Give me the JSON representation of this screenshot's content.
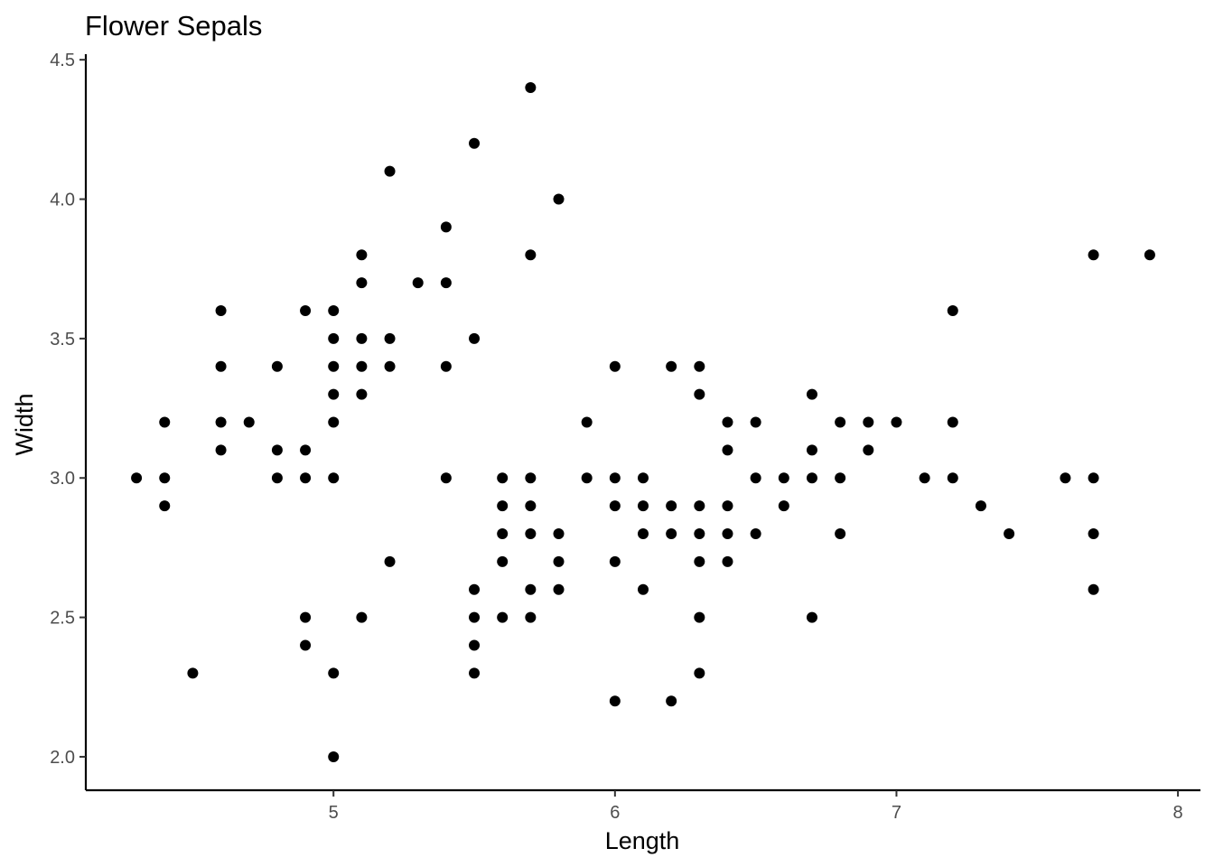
{
  "chart_data": {
    "type": "scatter",
    "title": "Flower Sepals",
    "xlabel": "Length",
    "ylabel": "Width",
    "xlim": [
      4.12,
      8.08
    ],
    "ylim": [
      1.88,
      4.52
    ],
    "xticks": [
      5,
      6,
      7,
      8
    ],
    "yticks": [
      2.0,
      2.5,
      3.0,
      3.5,
      4.0,
      4.5
    ],
    "xtick_labels": [
      "5",
      "6",
      "7",
      "8"
    ],
    "ytick_labels": [
      "2.0",
      "2.5",
      "3.0",
      "3.5",
      "4.0",
      "4.5"
    ],
    "grid": false,
    "legend": false,
    "point_color": "#000000",
    "points": [
      [
        4.3,
        3.0
      ],
      [
        4.4,
        3.2
      ],
      [
        4.4,
        3.0
      ],
      [
        4.4,
        2.9
      ],
      [
        4.5,
        2.3
      ],
      [
        4.6,
        3.6
      ],
      [
        4.6,
        3.4
      ],
      [
        4.6,
        3.2
      ],
      [
        4.6,
        3.1
      ],
      [
        4.7,
        3.2
      ],
      [
        4.8,
        3.4
      ],
      [
        4.8,
        3.1
      ],
      [
        4.8,
        3.0
      ],
      [
        4.9,
        3.6
      ],
      [
        4.9,
        3.1
      ],
      [
        4.9,
        3.0
      ],
      [
        4.9,
        2.5
      ],
      [
        4.9,
        2.4
      ],
      [
        5.0,
        3.6
      ],
      [
        5.0,
        3.5
      ],
      [
        5.0,
        3.4
      ],
      [
        5.0,
        3.3
      ],
      [
        5.0,
        3.2
      ],
      [
        5.0,
        3.0
      ],
      [
        5.0,
        2.3
      ],
      [
        5.0,
        2.0
      ],
      [
        5.1,
        3.8
      ],
      [
        5.1,
        3.7
      ],
      [
        5.1,
        3.5
      ],
      [
        5.1,
        3.4
      ],
      [
        5.1,
        3.3
      ],
      [
        5.1,
        2.5
      ],
      [
        5.2,
        4.1
      ],
      [
        5.2,
        3.5
      ],
      [
        5.2,
        3.4
      ],
      [
        5.2,
        2.7
      ],
      [
        5.3,
        3.7
      ],
      [
        5.4,
        3.9
      ],
      [
        5.4,
        3.7
      ],
      [
        5.4,
        3.4
      ],
      [
        5.4,
        3.0
      ],
      [
        5.5,
        4.2
      ],
      [
        5.5,
        3.5
      ],
      [
        5.5,
        2.6
      ],
      [
        5.5,
        2.5
      ],
      [
        5.5,
        2.4
      ],
      [
        5.5,
        2.3
      ],
      [
        5.6,
        3.0
      ],
      [
        5.6,
        2.9
      ],
      [
        5.6,
        2.8
      ],
      [
        5.6,
        2.7
      ],
      [
        5.6,
        2.5
      ],
      [
        5.7,
        4.4
      ],
      [
        5.7,
        3.8
      ],
      [
        5.7,
        3.0
      ],
      [
        5.7,
        2.9
      ],
      [
        5.7,
        2.8
      ],
      [
        5.7,
        2.6
      ],
      [
        5.7,
        2.5
      ],
      [
        5.8,
        4.0
      ],
      [
        5.8,
        2.8
      ],
      [
        5.8,
        2.7
      ],
      [
        5.8,
        2.6
      ],
      [
        5.9,
        3.2
      ],
      [
        5.9,
        3.0
      ],
      [
        6.0,
        3.4
      ],
      [
        6.0,
        3.0
      ],
      [
        6.0,
        2.9
      ],
      [
        6.0,
        2.7
      ],
      [
        6.0,
        2.2
      ],
      [
        6.1,
        3.0
      ],
      [
        6.1,
        2.9
      ],
      [
        6.1,
        2.8
      ],
      [
        6.1,
        2.6
      ],
      [
        6.2,
        3.4
      ],
      [
        6.2,
        2.9
      ],
      [
        6.2,
        2.8
      ],
      [
        6.2,
        2.2
      ],
      [
        6.3,
        3.4
      ],
      [
        6.3,
        3.3
      ],
      [
        6.3,
        2.9
      ],
      [
        6.3,
        2.8
      ],
      [
        6.3,
        2.7
      ],
      [
        6.3,
        2.5
      ],
      [
        6.3,
        2.3
      ],
      [
        6.4,
        3.2
      ],
      [
        6.4,
        3.1
      ],
      [
        6.4,
        2.9
      ],
      [
        6.4,
        2.8
      ],
      [
        6.4,
        2.7
      ],
      [
        6.5,
        3.2
      ],
      [
        6.5,
        3.0
      ],
      [
        6.5,
        2.8
      ],
      [
        6.6,
        3.0
      ],
      [
        6.6,
        2.9
      ],
      [
        6.7,
        3.3
      ],
      [
        6.7,
        3.1
      ],
      [
        6.7,
        3.0
      ],
      [
        6.7,
        2.5
      ],
      [
        6.8,
        3.2
      ],
      [
        6.8,
        3.0
      ],
      [
        6.8,
        2.8
      ],
      [
        6.9,
        3.2
      ],
      [
        6.9,
        3.1
      ],
      [
        7.0,
        3.2
      ],
      [
        7.1,
        3.0
      ],
      [
        7.2,
        3.6
      ],
      [
        7.2,
        3.2
      ],
      [
        7.2,
        3.0
      ],
      [
        7.3,
        2.9
      ],
      [
        7.4,
        2.8
      ],
      [
        7.6,
        3.0
      ],
      [
        7.7,
        3.8
      ],
      [
        7.7,
        3.0
      ],
      [
        7.7,
        2.8
      ],
      [
        7.7,
        2.6
      ],
      [
        7.9,
        3.8
      ]
    ]
  }
}
